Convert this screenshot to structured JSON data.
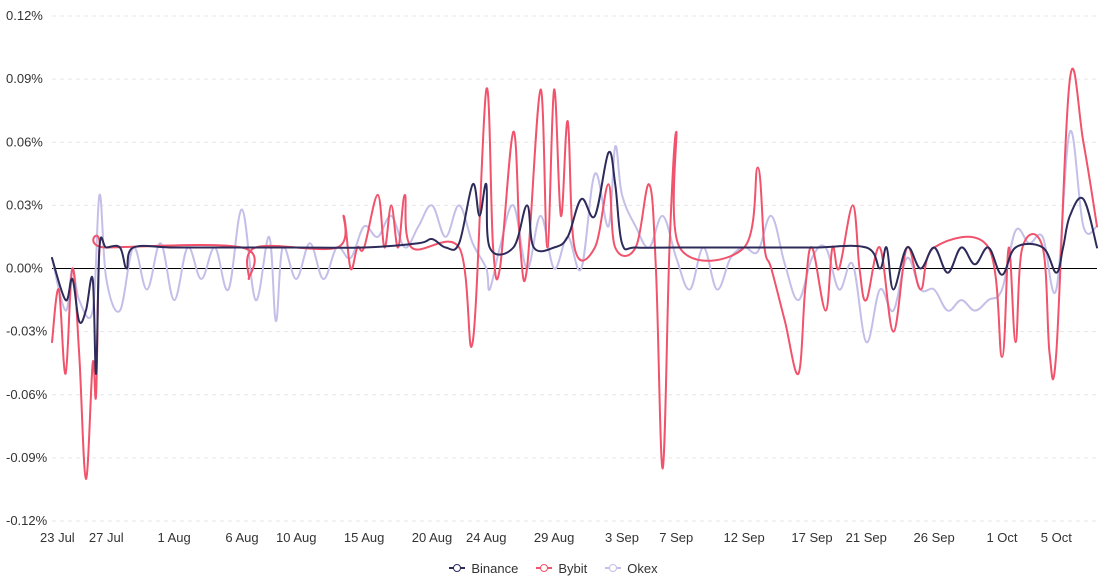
{
  "chart_data": {
    "type": "line",
    "title": "",
    "xlabel": "",
    "ylabel": "",
    "ylim": [
      -0.12,
      0.12
    ],
    "yticks": [
      -0.12,
      -0.09,
      -0.06,
      -0.03,
      0.0,
      0.03,
      0.06,
      0.09,
      0.12
    ],
    "ytick_labels": [
      "-0.12%",
      "-0.09%",
      "-0.06%",
      "-0.03%",
      "0.00%",
      "0.03%",
      "0.06%",
      "0.09%",
      "0.12%"
    ],
    "x_start": "2022-07-23",
    "x_end": "2022-10-08",
    "x_tick_labels": [
      {
        "date": "2022-07-23",
        "label": "23 Jul"
      },
      {
        "date": "2022-07-27",
        "label": "27 Jul"
      },
      {
        "date": "2022-08-01",
        "label": "1 Aug"
      },
      {
        "date": "2022-08-06",
        "label": "6 Aug"
      },
      {
        "date": "2022-08-10",
        "label": "10 Aug"
      },
      {
        "date": "2022-08-15",
        "label": "15 Aug"
      },
      {
        "date": "2022-08-20",
        "label": "20 Aug"
      },
      {
        "date": "2022-08-24",
        "label": "24 Aug"
      },
      {
        "date": "2022-08-29",
        "label": "29 Aug"
      },
      {
        "date": "2022-09-03",
        "label": "3 Sep"
      },
      {
        "date": "2022-09-07",
        "label": "7 Sep"
      },
      {
        "date": "2022-09-12",
        "label": "12 Sep"
      },
      {
        "date": "2022-09-17",
        "label": "17 Sep"
      },
      {
        "date": "2022-09-21",
        "label": "21 Sep"
      },
      {
        "date": "2022-09-26",
        "label": "26 Sep"
      },
      {
        "date": "2022-10-01",
        "label": "1 Oct"
      },
      {
        "date": "2022-10-05",
        "label": "5 Oct"
      }
    ],
    "grid": true,
    "legend_position": "bottom-center",
    "series": [
      {
        "name": "Binance",
        "color": "#2d2b5a",
        "points": [
          [
            "2022-07-23",
            0.005
          ],
          [
            "2022-07-24",
            -0.015
          ],
          [
            "2022-07-24 12:00",
            -0.005
          ],
          [
            "2022-07-25",
            -0.025
          ],
          [
            "2022-07-25 12:00",
            -0.02
          ],
          [
            "2022-07-26",
            -0.005
          ],
          [
            "2022-07-26 06:00",
            -0.05
          ],
          [
            "2022-07-26 12:00",
            0.01
          ],
          [
            "2022-07-27",
            0.01
          ],
          [
            "2022-07-28",
            0.01
          ],
          [
            "2022-07-28 12:00",
            0.0
          ],
          [
            "2022-07-29",
            0.01
          ],
          [
            "2022-08-01",
            0.01
          ],
          [
            "2022-08-06",
            0.01
          ],
          [
            "2022-08-10",
            0.01
          ],
          [
            "2022-08-15",
            0.01
          ],
          [
            "2022-08-19",
            0.012
          ],
          [
            "2022-08-20",
            0.014
          ],
          [
            "2022-08-21",
            0.01
          ],
          [
            "2022-08-22",
            0.012
          ],
          [
            "2022-08-23",
            0.04
          ],
          [
            "2022-08-23 12:00",
            0.025
          ],
          [
            "2022-08-24",
            0.04
          ],
          [
            "2022-08-24 06:00",
            0.01
          ],
          [
            "2022-08-26",
            0.01
          ],
          [
            "2022-08-27",
            0.03
          ],
          [
            "2022-08-27 12:00",
            0.01
          ],
          [
            "2022-08-29",
            0.01
          ],
          [
            "2022-08-30",
            0.015
          ],
          [
            "2022-08-31",
            0.033
          ],
          [
            "2022-09-01",
            0.025
          ],
          [
            "2022-09-02",
            0.055
          ],
          [
            "2022-09-02 12:00",
            0.04
          ],
          [
            "2022-09-03",
            0.012
          ],
          [
            "2022-09-04",
            0.01
          ],
          [
            "2022-09-07",
            0.01
          ],
          [
            "2022-09-12",
            0.01
          ],
          [
            "2022-09-17",
            0.01
          ],
          [
            "2022-09-21",
            0.01
          ],
          [
            "2022-09-22",
            0.0
          ],
          [
            "2022-09-22 12:00",
            0.01
          ],
          [
            "2022-09-23",
            -0.01
          ],
          [
            "2022-09-24",
            0.01
          ],
          [
            "2022-09-25",
            0.0
          ],
          [
            "2022-09-26",
            0.01
          ],
          [
            "2022-09-27",
            -0.002
          ],
          [
            "2022-09-28",
            0.01
          ],
          [
            "2022-09-29",
            0.002
          ],
          [
            "2022-09-30",
            0.01
          ],
          [
            "2022-10-01",
            -0.003
          ],
          [
            "2022-10-02",
            0.01
          ],
          [
            "2022-10-04",
            0.01
          ],
          [
            "2022-10-05",
            -0.002
          ],
          [
            "2022-10-05 12:00",
            0.01
          ],
          [
            "2022-10-06",
            0.025
          ],
          [
            "2022-10-07",
            0.033
          ],
          [
            "2022-10-08",
            0.01
          ]
        ]
      },
      {
        "name": "Bybit",
        "color": "#f0536b",
        "points": [
          [
            "2022-07-23",
            -0.035
          ],
          [
            "2022-07-23 12:00",
            -0.01
          ],
          [
            "2022-07-24",
            -0.05
          ],
          [
            "2022-07-24 12:00",
            0.0
          ],
          [
            "2022-07-25",
            -0.04
          ],
          [
            "2022-07-25 12:00",
            -0.1
          ],
          [
            "2022-07-26",
            -0.045
          ],
          [
            "2022-07-26 06:00",
            -0.06
          ],
          [
            "2022-07-26 12:00",
            0.01
          ],
          [
            "2022-07-27",
            0.01
          ],
          [
            "2022-08-06",
            0.01
          ],
          [
            "2022-08-06 12:00",
            -0.005
          ],
          [
            "2022-08-07",
            0.01
          ],
          [
            "2022-08-13",
            0.01
          ],
          [
            "2022-08-13 12:00",
            0.025
          ],
          [
            "2022-08-14",
            0.0
          ],
          [
            "2022-08-14 12:00",
            0.01
          ],
          [
            "2022-08-15",
            0.01
          ],
          [
            "2022-08-16",
            0.035
          ],
          [
            "2022-08-16 12:00",
            0.01
          ],
          [
            "2022-08-17",
            0.03
          ],
          [
            "2022-08-17 12:00",
            0.01
          ],
          [
            "2022-08-18",
            0.035
          ],
          [
            "2022-08-18 12:00",
            0.01
          ],
          [
            "2022-08-22",
            0.01
          ],
          [
            "2022-08-23",
            -0.035
          ],
          [
            "2022-08-24",
            0.085
          ],
          [
            "2022-08-24 12:00",
            0.01
          ],
          [
            "2022-08-25",
            0.0
          ],
          [
            "2022-08-26",
            0.065
          ],
          [
            "2022-08-26 12:00",
            0.01
          ],
          [
            "2022-08-27",
            0.0
          ],
          [
            "2022-08-28",
            0.085
          ],
          [
            "2022-08-28 12:00",
            0.01
          ],
          [
            "2022-08-29",
            0.085
          ],
          [
            "2022-08-29 12:00",
            0.025
          ],
          [
            "2022-08-30",
            0.07
          ],
          [
            "2022-08-30 12:00",
            0.01
          ],
          [
            "2022-09-01",
            0.01
          ],
          [
            "2022-09-02",
            0.04
          ],
          [
            "2022-09-02 12:00",
            0.01
          ],
          [
            "2022-09-04",
            0.01
          ],
          [
            "2022-09-05",
            0.04
          ],
          [
            "2022-09-05 12:00",
            0.0
          ],
          [
            "2022-09-06",
            -0.095
          ],
          [
            "2022-09-06 12:00",
            0.01
          ],
          [
            "2022-09-07",
            0.065
          ],
          [
            "2022-09-07 06:00",
            0.01
          ],
          [
            "2022-09-12",
            0.01
          ],
          [
            "2022-09-13",
            0.048
          ],
          [
            "2022-09-13 12:00",
            0.01
          ],
          [
            "2022-09-14",
            0.0
          ],
          [
            "2022-09-15",
            -0.025
          ],
          [
            "2022-09-16",
            -0.05
          ],
          [
            "2022-09-16 12:00",
            -0.01
          ],
          [
            "2022-09-17",
            0.01
          ],
          [
            "2022-09-18",
            -0.02
          ],
          [
            "2022-09-18 12:00",
            0.01
          ],
          [
            "2022-09-19",
            0.0
          ],
          [
            "2022-09-20",
            0.03
          ],
          [
            "2022-09-20 12:00",
            0.0
          ],
          [
            "2022-09-21",
            -0.015
          ],
          [
            "2022-09-22",
            0.01
          ],
          [
            "2022-09-23",
            -0.03
          ],
          [
            "2022-09-24",
            0.01
          ],
          [
            "2022-09-25",
            -0.01
          ],
          [
            "2022-09-26",
            0.01
          ],
          [
            "2022-09-30",
            0.01
          ],
          [
            "2022-10-01",
            -0.042
          ],
          [
            "2022-10-01 12:00",
            0.01
          ],
          [
            "2022-10-02",
            -0.035
          ],
          [
            "2022-10-02 12:00",
            0.01
          ],
          [
            "2022-10-04",
            0.01
          ],
          [
            "2022-10-04 12:00",
            -0.04
          ],
          [
            "2022-10-05",
            -0.04
          ],
          [
            "2022-10-06",
            0.09
          ],
          [
            "2022-10-07",
            0.06
          ],
          [
            "2022-10-08",
            0.02
          ]
        ]
      },
      {
        "name": "Okex",
        "color": "#c4bfe8",
        "points": [
          [
            "2022-07-23",
            0.005
          ],
          [
            "2022-07-24",
            -0.02
          ],
          [
            "2022-07-24 12:00",
            0.0
          ],
          [
            "2022-07-25",
            -0.015
          ],
          [
            "2022-07-26",
            -0.02
          ],
          [
            "2022-07-26 12:00",
            0.035
          ],
          [
            "2022-07-27",
            -0.005
          ],
          [
            "2022-07-28",
            -0.02
          ],
          [
            "2022-07-29",
            0.01
          ],
          [
            "2022-07-30",
            -0.01
          ],
          [
            "2022-07-31",
            0.012
          ],
          [
            "2022-08-01",
            -0.015
          ],
          [
            "2022-08-02",
            0.01
          ],
          [
            "2022-08-03",
            -0.005
          ],
          [
            "2022-08-04",
            0.01
          ],
          [
            "2022-08-05",
            -0.01
          ],
          [
            "2022-08-06",
            0.028
          ],
          [
            "2022-08-07",
            -0.015
          ],
          [
            "2022-08-08",
            0.015
          ],
          [
            "2022-08-08 12:00",
            -0.025
          ],
          [
            "2022-08-09",
            0.01
          ],
          [
            "2022-08-10",
            -0.005
          ],
          [
            "2022-08-11",
            0.012
          ],
          [
            "2022-08-12",
            -0.005
          ],
          [
            "2022-08-13",
            0.01
          ],
          [
            "2022-08-14",
            0.005
          ],
          [
            "2022-08-15",
            0.02
          ],
          [
            "2022-08-16",
            0.015
          ],
          [
            "2022-08-17",
            0.025
          ],
          [
            "2022-08-18",
            0.01
          ],
          [
            "2022-08-19",
            0.02
          ],
          [
            "2022-08-20",
            0.03
          ],
          [
            "2022-08-21",
            0.015
          ],
          [
            "2022-08-22",
            0.03
          ],
          [
            "2022-08-23",
            0.012
          ],
          [
            "2022-08-24",
            0.0
          ],
          [
            "2022-08-24 06:00",
            -0.01
          ],
          [
            "2022-08-25",
            0.01
          ],
          [
            "2022-08-26",
            0.03
          ],
          [
            "2022-08-27",
            0.0
          ],
          [
            "2022-08-28",
            0.025
          ],
          [
            "2022-08-29",
            0.0
          ],
          [
            "2022-08-30",
            0.015
          ],
          [
            "2022-08-31",
            0.0
          ],
          [
            "2022-09-01",
            0.045
          ],
          [
            "2022-09-02",
            0.02
          ],
          [
            "2022-09-02 12:00",
            0.058
          ],
          [
            "2022-09-03",
            0.035
          ],
          [
            "2022-09-04",
            0.02
          ],
          [
            "2022-09-05",
            0.01
          ],
          [
            "2022-09-06",
            0.025
          ],
          [
            "2022-09-07",
            0.005
          ],
          [
            "2022-09-08",
            -0.01
          ],
          [
            "2022-09-09",
            0.01
          ],
          [
            "2022-09-10",
            -0.01
          ],
          [
            "2022-09-11",
            0.005
          ],
          [
            "2022-09-12",
            0.01
          ],
          [
            "2022-09-13",
            0.008
          ],
          [
            "2022-09-14",
            0.025
          ],
          [
            "2022-09-15",
            0.002
          ],
          [
            "2022-09-16",
            -0.015
          ],
          [
            "2022-09-17",
            0.005
          ],
          [
            "2022-09-18",
            0.01
          ],
          [
            "2022-09-19",
            -0.01
          ],
          [
            "2022-09-20",
            0.002
          ],
          [
            "2022-09-21",
            -0.035
          ],
          [
            "2022-09-22",
            -0.01
          ],
          [
            "2022-09-23",
            -0.02
          ],
          [
            "2022-09-24",
            0.005
          ],
          [
            "2022-09-25",
            -0.01
          ],
          [
            "2022-09-26",
            -0.01
          ],
          [
            "2022-09-27",
            -0.02
          ],
          [
            "2022-09-28",
            -0.015
          ],
          [
            "2022-09-29",
            -0.02
          ],
          [
            "2022-09-30",
            -0.015
          ],
          [
            "2022-10-01",
            -0.01
          ],
          [
            "2022-10-02",
            0.018
          ],
          [
            "2022-10-03",
            0.012
          ],
          [
            "2022-10-04",
            0.015
          ],
          [
            "2022-10-05",
            -0.01
          ],
          [
            "2022-10-06",
            0.065
          ],
          [
            "2022-10-07",
            0.02
          ],
          [
            "2022-10-08",
            0.02
          ]
        ]
      }
    ]
  }
}
